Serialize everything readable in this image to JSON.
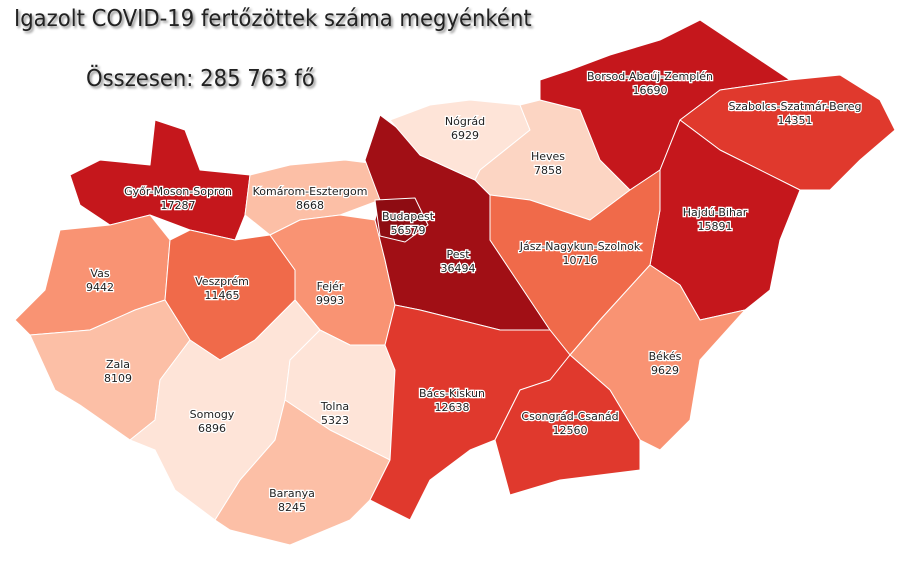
{
  "title": "Igazolt COVID-19 fertőzöttek száma megyénként",
  "total": "Összesen: 285 763 fő",
  "colors": {
    "c1": "#fee4d8",
    "c2": "#fcbfa6",
    "c3": "#f99373",
    "c4": "#f06a4a",
    "c5": "#e0392d",
    "c6": "#c5171c",
    "c7": "#a10f15"
  },
  "counties": [
    {
      "name": "Győr-Moson-Sopron",
      "value": "17287",
      "color": "#c5171c"
    },
    {
      "name": "Komárom-Esztergom",
      "value": "8668",
      "color": "#fcbfa6"
    },
    {
      "name": "Vas",
      "value": "9442",
      "color": "#f99373"
    },
    {
      "name": "Veszprém",
      "value": "11465",
      "color": "#f06a4a"
    },
    {
      "name": "Fejér",
      "value": "9993",
      "color": "#f99373"
    },
    {
      "name": "Zala",
      "value": "8109",
      "color": "#fcbfa6"
    },
    {
      "name": "Somogy",
      "value": "6896",
      "color": "#fee4d8"
    },
    {
      "name": "Tolna",
      "value": "5323",
      "color": "#fee4d8"
    },
    {
      "name": "Baranya",
      "value": "8245",
      "color": "#fcbfa6"
    },
    {
      "name": "Pest",
      "value": "36494",
      "color": "#a10f15"
    },
    {
      "name": "Budapest",
      "value": "56579",
      "color": "#8e0c12"
    },
    {
      "name": "Nógrád",
      "value": "6929",
      "color": "#fee4d8"
    },
    {
      "name": "Heves",
      "value": "7858",
      "color": "#fcd5c3"
    },
    {
      "name": "Borsod-Abaúj-Zemplén",
      "value": "16690",
      "color": "#c5171c"
    },
    {
      "name": "Szabolcs-Szatmár-Bereg",
      "value": "14351",
      "color": "#e0392d"
    },
    {
      "name": "Hajdú-Bihar",
      "value": "15891",
      "color": "#c5171c"
    },
    {
      "name": "Jász-Nagykun-Szolnok",
      "value": "10716",
      "color": "#f06a4a"
    },
    {
      "name": "Békés",
      "value": "9629",
      "color": "#f99373"
    },
    {
      "name": "Bács-Kiskun",
      "value": "12638",
      "color": "#e0392d"
    },
    {
      "name": "Csongrád-Csanád",
      "value": "12560",
      "color": "#e0392d"
    }
  ]
}
